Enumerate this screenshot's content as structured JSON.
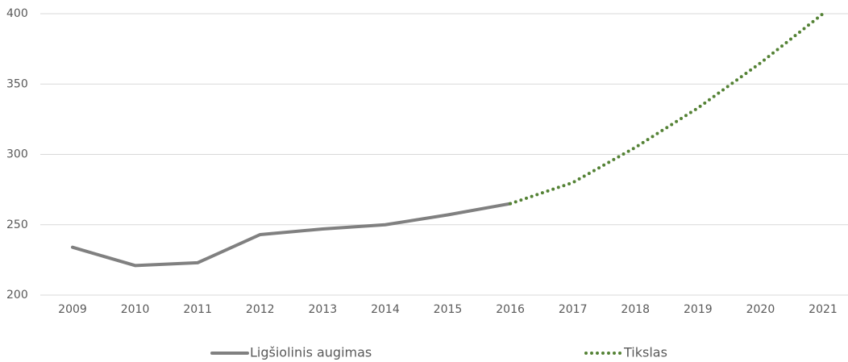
{
  "chart_data": {
    "type": "line",
    "categories": [
      "2009",
      "2010",
      "2011",
      "2012",
      "2013",
      "2014",
      "2015",
      "2016",
      "2017",
      "2018",
      "2019",
      "2020",
      "2021"
    ],
    "series": [
      {
        "name": "Ligšiolinis augimas",
        "color": "#808080",
        "style": "solid",
        "values": [
          234,
          221,
          223,
          243,
          247,
          250,
          257,
          265,
          null,
          null,
          null,
          null,
          null
        ]
      },
      {
        "name": "Tikslas",
        "color": "#548235",
        "style": "dotted",
        "values": [
          null,
          null,
          null,
          null,
          null,
          null,
          null,
          265,
          280,
          305,
          333,
          365,
          400
        ]
      }
    ],
    "ylim": [
      200,
      400
    ],
    "yticks": [
      200,
      250,
      300,
      350,
      400
    ],
    "grid": true,
    "legend": "bottom"
  }
}
